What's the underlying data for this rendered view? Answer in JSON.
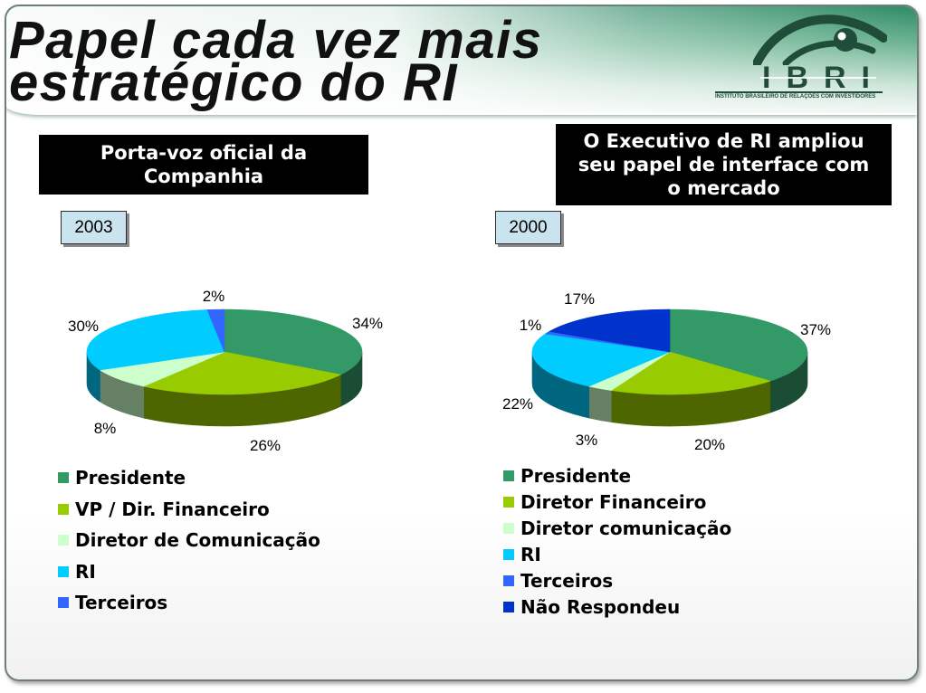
{
  "title": "Papel cada vez mais\nestratégico do RI",
  "logo": {
    "icon": "eye-icon",
    "name": "IBRI",
    "tagline": "INSTITUTO BRASILEIRO DE RELAÇÕES COM INVESTIDORES",
    "color": "#1f4d3a"
  },
  "callouts": {
    "left": "Porta-voz oficial da\nCompanhia",
    "right": "O Executivo de RI ampliou\nseu papel de interface com\no mercado"
  },
  "chart_data": [
    {
      "type": "pie",
      "three_d": true,
      "title": "2003",
      "categories": [
        "Presidente",
        "VP / Dir. Financeiro",
        "Diretor de Comunicação",
        "RI",
        "Terceiros"
      ],
      "values": [
        34,
        26,
        8,
        30,
        2
      ],
      "data_labels": [
        "34%",
        "26%",
        "8%",
        "30%",
        "2%"
      ],
      "colors": [
        "#339966",
        "#99cc00",
        "#ccffcc",
        "#00ccff",
        "#3366ff"
      ],
      "legend": "bottom-left"
    },
    {
      "type": "pie",
      "three_d": true,
      "title": "2000",
      "categories": [
        "Presidente",
        "Diretor Financeiro",
        "Diretor comunicação",
        "RI",
        "Terceiros",
        "Não Respondeu"
      ],
      "values": [
        37,
        20,
        3,
        22,
        1,
        17
      ],
      "data_labels": [
        "37%",
        "20%",
        "3%",
        "22%",
        "1%",
        "17%"
      ],
      "colors": [
        "#339966",
        "#99cc00",
        "#ccffcc",
        "#00ccff",
        "#3366ff",
        "#0033cc"
      ],
      "legend": "bottom-left"
    }
  ]
}
